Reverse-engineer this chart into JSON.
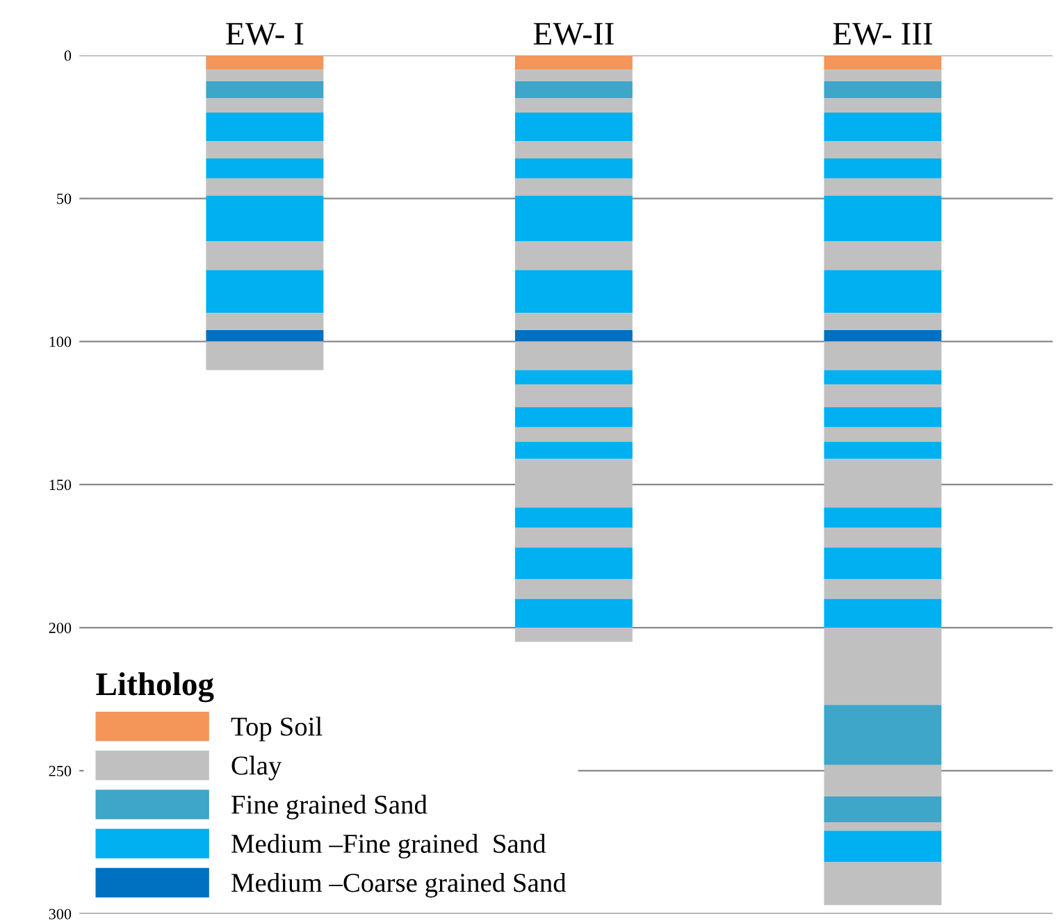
{
  "chart_data": {
    "type": "bar",
    "stacked": true,
    "categories": [
      "EW- I",
      "EW-II",
      "EW- III"
    ],
    "ylim": [
      300,
      0
    ],
    "yticks": [
      0,
      50,
      100,
      150,
      200,
      250,
      300
    ],
    "grid": "y",
    "legend": "bottom left",
    "legend_title": "Litholog",
    "series": [
      {
        "name": "Top Soil",
        "color": "#f4955a",
        "values": [
          5,
          5,
          5
        ]
      },
      {
        "name": "Clay",
        "color": "#c0c0c0",
        "values": [
          4,
          4,
          4
        ]
      },
      {
        "name": "Fine grained Sand",
        "color": "#3ea6c8",
        "values": [
          6,
          6,
          6
        ]
      },
      {
        "color": "#c0c0c0",
        "values": [
          5,
          5,
          5
        ]
      },
      {
        "name": "Medium –Fine grained  Sand",
        "color": "#00b0f0",
        "values": [
          10,
          10,
          10
        ]
      },
      {
        "color": "#c0c0c0",
        "values": [
          6,
          6,
          6
        ]
      },
      {
        "color": "#00b0f0",
        "values": [
          7,
          7,
          7
        ]
      },
      {
        "color": "#c0c0c0",
        "values": [
          6,
          6,
          6
        ]
      },
      {
        "color": "#00b0f0",
        "values": [
          16,
          16,
          16
        ]
      },
      {
        "color": "#c0c0c0",
        "values": [
          10,
          10,
          10
        ]
      },
      {
        "color": "#00b0f0",
        "values": [
          15,
          15,
          15
        ]
      },
      {
        "color": "#c0c0c0",
        "values": [
          6,
          6,
          6
        ]
      },
      {
        "name": "Medium –Coarse grained Sand",
        "color": "#0070c0",
        "values": [
          4,
          4,
          4
        ]
      },
      {
        "color": "#c0c0c0",
        "values": [
          10,
          10,
          10
        ]
      },
      {
        "color": "#00b0f0",
        "values": [
          null,
          5,
          5
        ]
      },
      {
        "color": "#c0c0c0",
        "values": [
          null,
          8,
          8
        ]
      },
      {
        "color": "#00b0f0",
        "values": [
          null,
          7,
          7
        ]
      },
      {
        "color": "#c0c0c0",
        "values": [
          null,
          5,
          5
        ]
      },
      {
        "color": "#00b0f0",
        "values": [
          null,
          6,
          6
        ]
      },
      {
        "color": "#c0c0c0",
        "values": [
          null,
          17,
          17
        ]
      },
      {
        "color": "#00b0f0",
        "values": [
          null,
          7,
          7
        ]
      },
      {
        "color": "#c0c0c0",
        "values": [
          null,
          7,
          7
        ]
      },
      {
        "color": "#00b0f0",
        "values": [
          null,
          11,
          11
        ]
      },
      {
        "color": "#c0c0c0",
        "values": [
          null,
          7,
          7
        ]
      },
      {
        "color": "#00b0f0",
        "values": [
          null,
          10,
          10
        ]
      },
      {
        "color": "#c0c0c0",
        "values": [
          null,
          5,
          27
        ]
      },
      {
        "color": "#3ea6c8",
        "values": [
          null,
          null,
          21
        ]
      },
      {
        "color": "#c0c0c0",
        "values": [
          null,
          null,
          11
        ]
      },
      {
        "color": "#3ea6c8",
        "values": [
          null,
          null,
          9
        ]
      },
      {
        "color": "#c0c0c0",
        "values": [
          null,
          null,
          3
        ]
      },
      {
        "color": "#00b0f0",
        "values": [
          null,
          null,
          11
        ]
      },
      {
        "color": "#c0c0c0",
        "values": [
          null,
          null,
          15
        ]
      }
    ]
  }
}
